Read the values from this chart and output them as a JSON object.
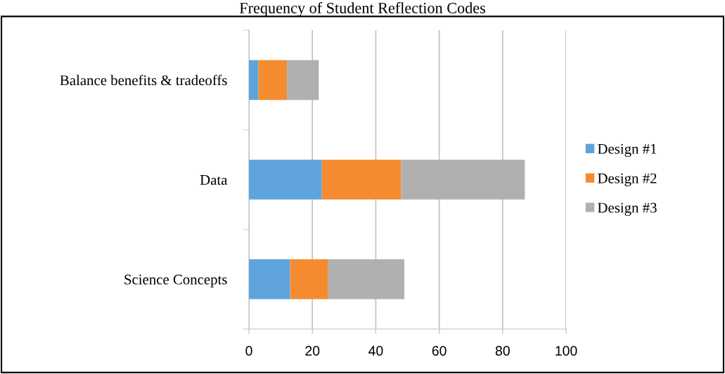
{
  "chart_data": {
    "type": "bar",
    "orientation": "horizontal",
    "stacked": true,
    "title": "Frequency of Student Reflection Codes",
    "categories": [
      "Balance benefits & tradeoffs",
      "Data",
      "Science Concepts"
    ],
    "series": [
      {
        "name": "Design #1",
        "color": "#5fa3dc",
        "values": [
          3,
          23,
          13
        ]
      },
      {
        "name": "Design #2",
        "color": "#f58b30",
        "values": [
          9,
          25,
          12
        ]
      },
      {
        "name": "Design #3",
        "color": "#b0b0b0",
        "values": [
          10,
          39,
          24
        ]
      }
    ],
    "xlim": [
      0,
      100
    ],
    "xticks": [
      0,
      20,
      40,
      60,
      80,
      100
    ],
    "grid": "x",
    "legend": "right"
  }
}
